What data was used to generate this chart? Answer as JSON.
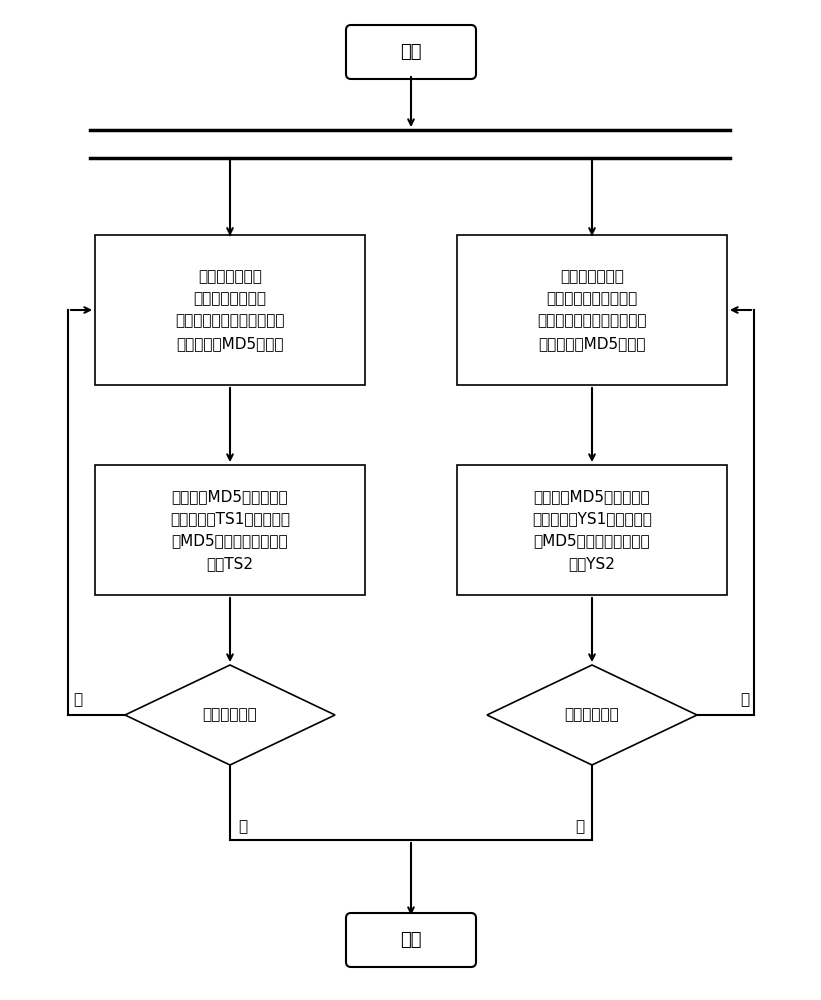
{
  "bg_color": "#ffffff",
  "line_color": "#000000",
  "text_color": "#000000",
  "font_size": 11,
  "start_label": "开始",
  "end_label": "结束",
  "box_left_label": "读取主用数据库\n中的一条记录，将\n主键值与其对应的整条记录\n的值转化成MD5散列值",
  "box_right_label": "读取备用数据库\n中数据的一条记录，将\n主键值与其对应的整条记录\n的值转化成MD5散列值",
  "box2_left_label": "业务主键MD5散列值存入\n字符串数组TS1，整条记录\n的MD5散列值存入字符串\n数组TS2",
  "box2_right_label": "业务主键MD5散列值存入\n字符串数组YS1，整条记录\n的MD5散列值存入字符串\n数组YS2",
  "diamond_label": "文件是否读完",
  "yes_label": "是",
  "no_label": "否"
}
